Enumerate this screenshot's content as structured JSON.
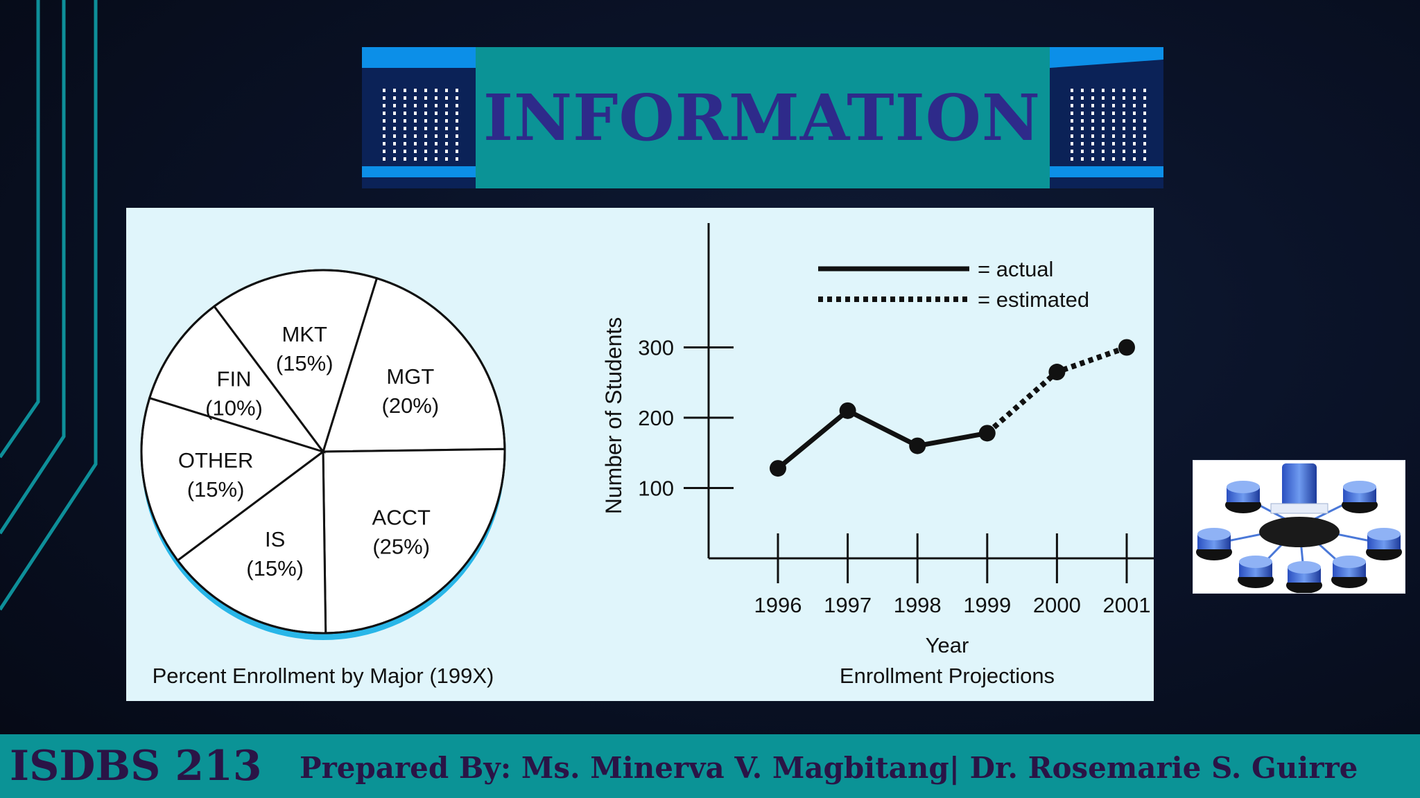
{
  "slide": {
    "title": "INFORMATION",
    "footer_code": "ISDBS 213",
    "footer_credit": "Prepared By: Ms. Minerva V. Magbitang| Dr. Rosemarie S. Guirre",
    "colors": {
      "teal": "#0b9396",
      "title_text": "#2e2a8a",
      "banner_blue": "#0c8fe8",
      "banner_dark": "#0b2257",
      "panel_bg": "#e0f5fb"
    },
    "thumbnail_icon": "database-network-icon"
  },
  "chart_data": [
    {
      "type": "pie",
      "title": "Percent Enrollment by Major (199X)",
      "slices": [
        {
          "label": "MGT",
          "value": 20
        },
        {
          "label": "ACCT",
          "value": 25
        },
        {
          "label": "IS",
          "value": 15
        },
        {
          "label": "OTHER",
          "value": 15
        },
        {
          "label": "FIN",
          "value": 10
        },
        {
          "label": "MKT",
          "value": 15
        }
      ],
      "slice_labels": [
        "(20%)",
        "(25%)",
        "(15%)",
        "(15%)",
        "(10%)",
        "(15%)"
      ]
    },
    {
      "type": "line",
      "title": "Enrollment Projections",
      "xlabel": "Year",
      "ylabel": "Number of Students",
      "x": [
        "1996",
        "1997",
        "1998",
        "1999",
        "2000",
        "2001"
      ],
      "y_ticks": [
        100,
        200,
        300
      ],
      "ylim": [
        0,
        400
      ],
      "series": [
        {
          "name": "= actual",
          "values": [
            128,
            210,
            160,
            178,
            null,
            null
          ]
        },
        {
          "name": "= estimated",
          "values": [
            null,
            null,
            null,
            178,
            265,
            300
          ]
        }
      ],
      "grid": false,
      "legend": "top"
    }
  ]
}
